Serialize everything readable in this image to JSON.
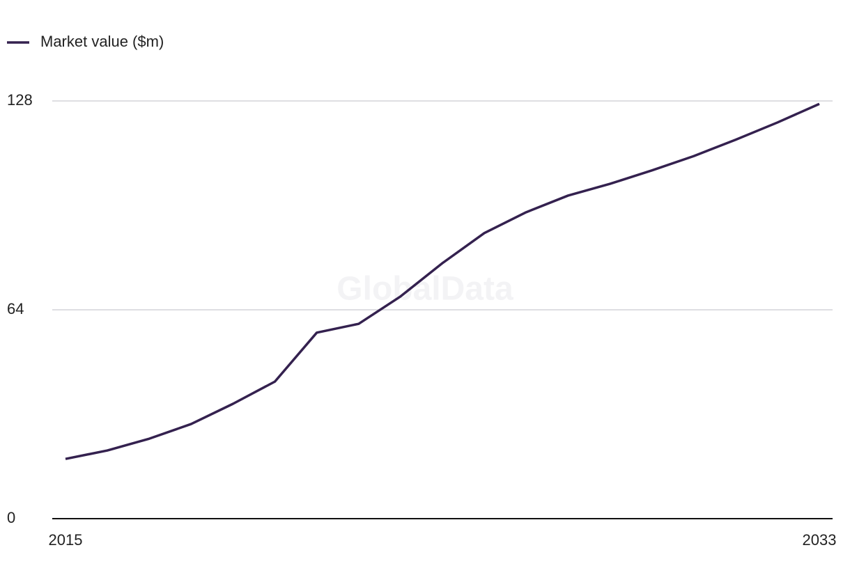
{
  "chart_data": {
    "type": "line",
    "watermark": "GlobalData",
    "x": [
      2015,
      2016,
      2017,
      2018,
      2019,
      2020,
      2021,
      2022,
      2023,
      2024,
      2025,
      2026,
      2027,
      2028,
      2029,
      2030,
      2031,
      2032,
      2033
    ],
    "series": [
      {
        "name": "Market value ($m)",
        "color": "#34214f",
        "values": [
          18.3,
          20.9,
          24.5,
          29.0,
          35.2,
          42.0,
          57.0,
          59.7,
          68.1,
          78.3,
          87.5,
          93.9,
          99.0,
          102.6,
          106.7,
          111.1,
          116.1,
          121.4,
          127.1
        ]
      }
    ],
    "xlim": [
      2015,
      2033
    ],
    "xticks": [
      2015,
      2033
    ],
    "ylim": [
      0,
      128
    ],
    "yticks": [
      0,
      64,
      128
    ],
    "grid": true,
    "legend": "top-left"
  }
}
